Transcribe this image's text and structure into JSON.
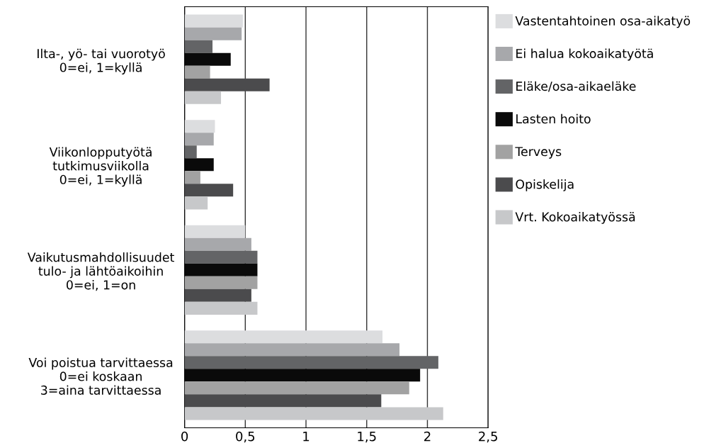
{
  "chart_data": {
    "type": "bar",
    "orientation": "horizontal",
    "categories": [
      "Ilta-, yö- tai vuorotyö\n0=ei, 1=kyllä",
      "Viikonlopputyötä\ntutkimusviikolla\n0=ei, 1=kyllä",
      "Vaikutusmahdollisuudet\ntulo- ja lähtöaikoihin\n0=ei, 1=on",
      "Voi poistua tarvittaessa\n0=ei koskaan\n3=aina tarvittaessa"
    ],
    "series": [
      {
        "name": "Vastentahtoinen osa-aikatyö",
        "color": "#dcdddf",
        "values": [
          0.48,
          0.25,
          0.5,
          1.63
        ]
      },
      {
        "name": "Ei halua kokoaikatyötä",
        "color": "#a7a8ab",
        "values": [
          0.47,
          0.24,
          0.55,
          1.77
        ]
      },
      {
        "name": "Eläke/osa-aikaeläke",
        "color": "#636466",
        "values": [
          0.23,
          0.1,
          0.6,
          2.09
        ]
      },
      {
        "name": "Lasten hoito",
        "color": "#0a0a0a",
        "values": [
          0.38,
          0.24,
          0.6,
          1.94
        ]
      },
      {
        "name": "Terveys",
        "color": "#a2a2a2",
        "values": [
          0.21,
          0.13,
          0.6,
          1.85
        ]
      },
      {
        "name": "Opiskelija",
        "color": "#4b4b4d",
        "values": [
          0.7,
          0.4,
          0.55,
          1.62
        ]
      },
      {
        "name": "Vrt. Kokoaikatyössä",
        "color": "#c7c8ca",
        "values": [
          0.3,
          0.19,
          0.6,
          2.13
        ]
      }
    ],
    "xlim": [
      0,
      2.5
    ],
    "xticks": [
      0,
      {
        "value": 0.5,
        "label": "0,5"
      },
      1,
      {
        "value": 1.5,
        "label": "1,5"
      },
      2,
      {
        "value": 2.5,
        "label": "2,5"
      }
    ],
    "grid": "x",
    "legend": "right"
  }
}
